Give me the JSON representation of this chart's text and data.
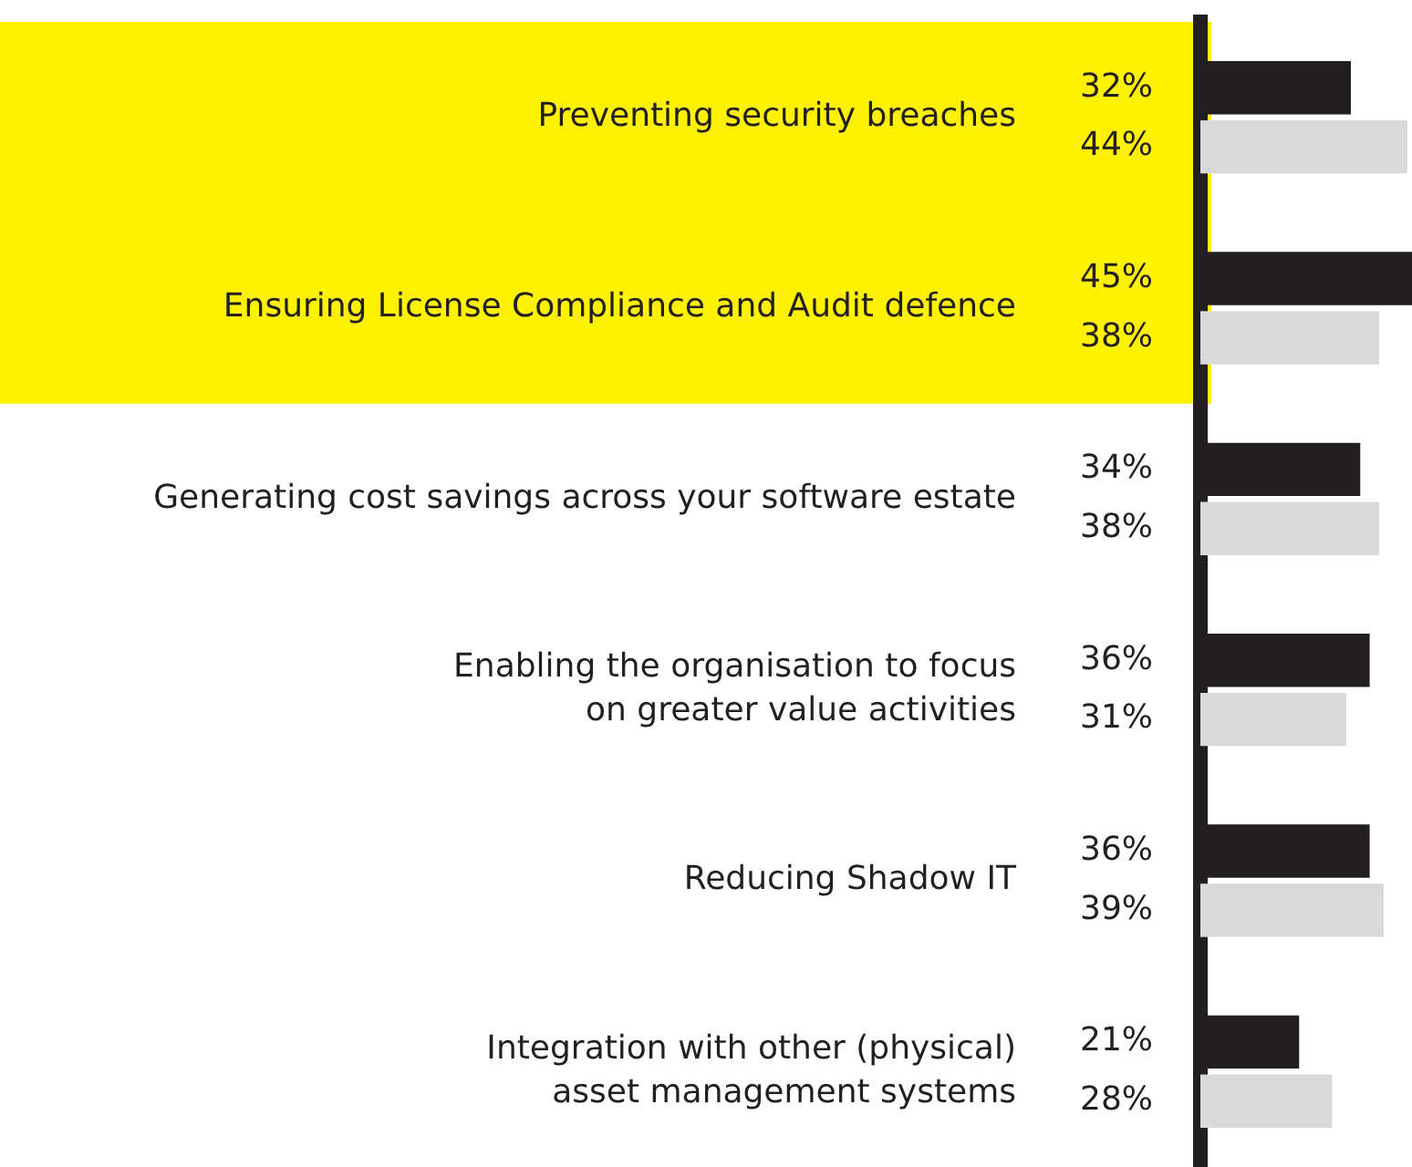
{
  "chart_data": {
    "type": "bar",
    "orientation": "horizontal",
    "categories": [
      "Preventing security breaches",
      "Ensuring License Compliance and Audit defence",
      "Generating cost savings across your software estate",
      "Enabling the organisation to focus on greater value activities",
      "Reducing Shadow IT",
      "Integration with other (physical) asset management systems"
    ],
    "series": [
      {
        "color": "#231f20",
        "values": [
          32,
          45,
          34,
          36,
          36,
          21
        ],
        "value_labels": [
          "32%",
          "45%",
          "34%",
          "36%",
          "36%",
          "21%"
        ]
      },
      {
        "color": "#d9d9d9",
        "values": [
          44,
          38,
          38,
          31,
          39,
          28
        ],
        "value_labels": [
          "44%",
          "38%",
          "38%",
          "31%",
          "39%",
          "28%"
        ]
      }
    ],
    "xlim": [
      0,
      45
    ],
    "tick_labels": "y",
    "grid": false,
    "legend": false,
    "bands": [
      {
        "axis": "y",
        "from": "Preventing security breaches",
        "to": "Ensuring License Compliance and Audit defence",
        "color": "#fff200"
      }
    ]
  }
}
